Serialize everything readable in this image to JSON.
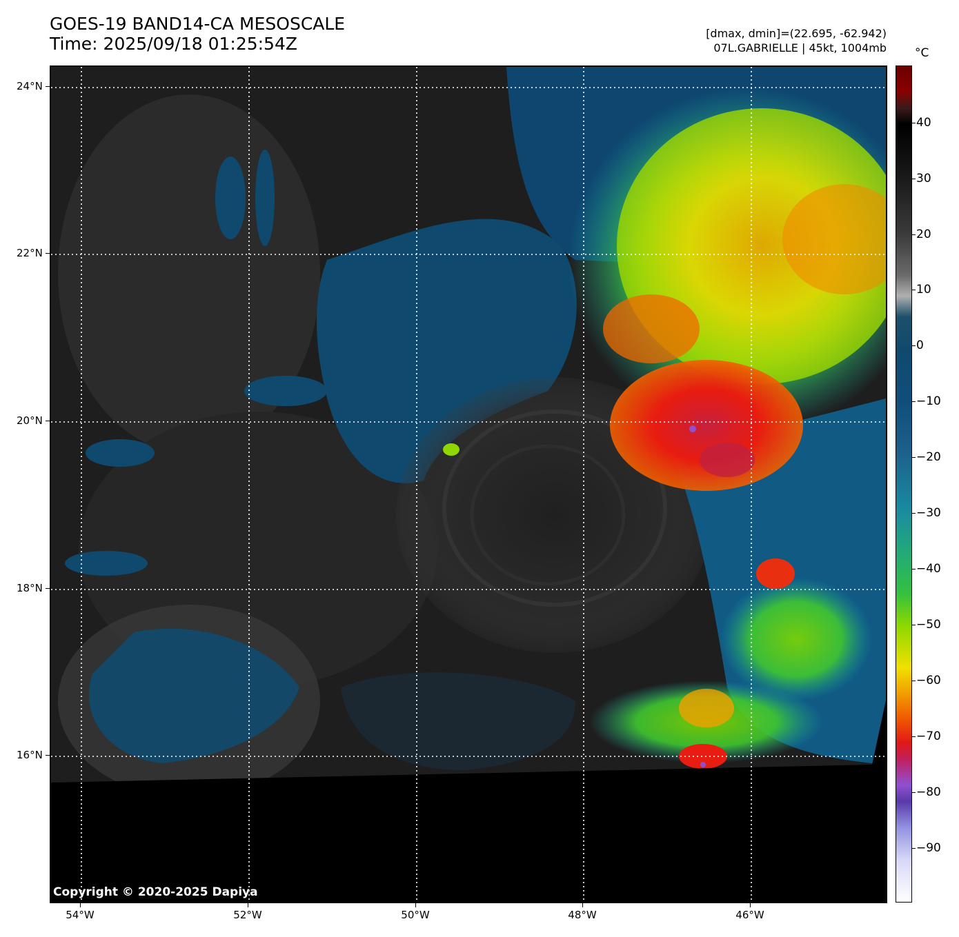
{
  "header": {
    "title_line1": "GOES-19 BAND14-CA MESOSCALE",
    "title_line2": "Time: 2025/09/18 01:25:54Z",
    "stats_line": "[dmax, dmin]=(22.695, -62.942)",
    "storm_line": "07L.GABRIELLE | 45kt, 1004mb"
  },
  "map": {
    "lat_labels": [
      "24°N",
      "22°N",
      "20°N",
      "18°N",
      "16°N"
    ],
    "lon_labels": [
      "54°W",
      "52°W",
      "50°W",
      "48°W",
      "46°W"
    ],
    "copyright": "Copyright © 2020-2025 Dapiya"
  },
  "colorbar": {
    "unit": "°C",
    "labels": [
      "40",
      "30",
      "20",
      "10",
      "0",
      "−10",
      "−20",
      "−30",
      "−40",
      "−50",
      "−60",
      "−70",
      "−80",
      "−90"
    ],
    "colors": {
      "warm_top": "#6a0000",
      "ocean": "#0f4a6e",
      "cold_cloud_red": "#e01818",
      "cold_cloud_yellow": "#f0e000",
      "cold_cloud_green": "#33c040",
      "coldest": "#ffffff"
    }
  }
}
